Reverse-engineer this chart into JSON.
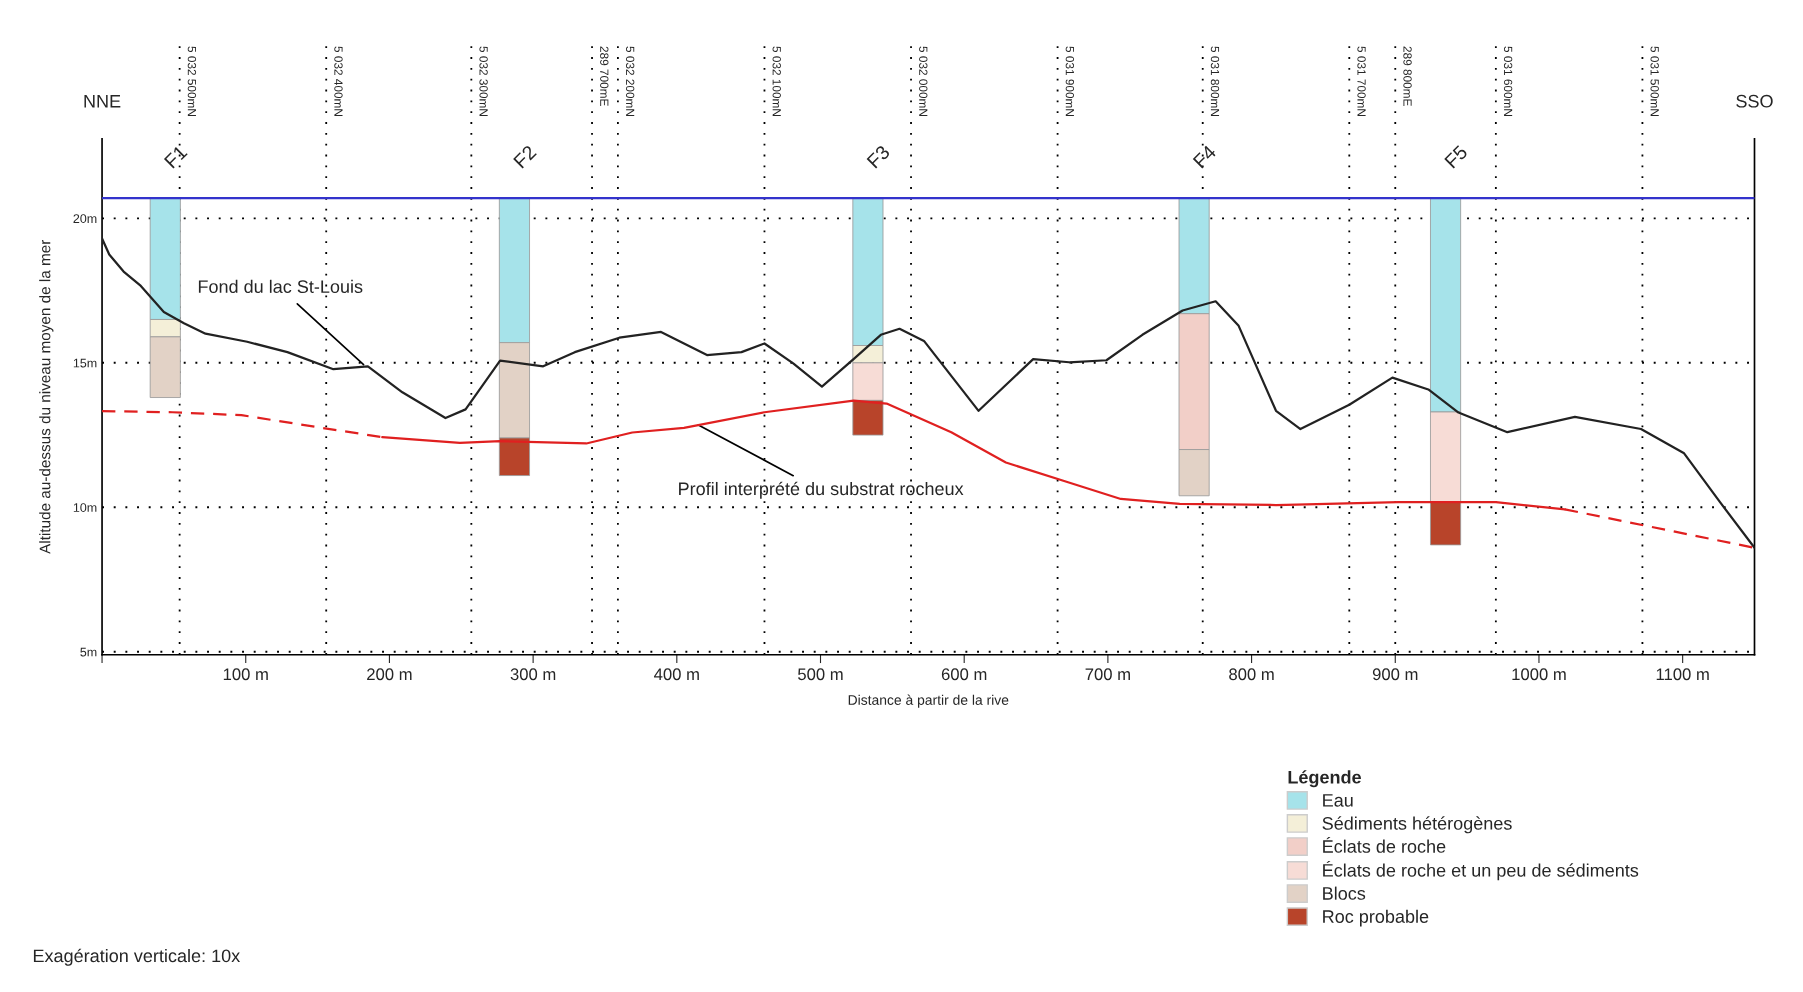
{
  "chart_data": {
    "type": "bar",
    "xlabel": "Distance à partir de la rive",
    "ylabel": "Altitude au-dessus du niveau moyen de la mer",
    "legend_title": "Légende",
    "x": [
      44,
      287,
      533,
      760,
      935
    ],
    "series": [
      {
        "name": "Eau",
        "color": "#a6e3ea",
        "base": [
          16.5,
          15.7,
          15.6,
          16.7,
          13.3
        ],
        "values": [
          4.2,
          5.0,
          5.1,
          4.0,
          7.4
        ]
      },
      {
        "name": "Sédiments hétérogènes",
        "color": "#f4efd8",
        "base": [
          15.9,
          null,
          15.0,
          null,
          null
        ],
        "values": [
          0.6,
          null,
          0.6,
          null,
          null
        ]
      },
      {
        "name": "Éclats de roche",
        "color": "#f2cfc8",
        "base": [
          null,
          null,
          null,
          12.0,
          null
        ],
        "values": [
          null,
          null,
          null,
          4.7,
          null
        ]
      },
      {
        "name": "Éclats de roche et un peu de sédiments",
        "color": "#f7dcd6",
        "base": [
          null,
          null,
          13.7,
          null,
          10.2
        ],
        "values": [
          null,
          null,
          1.3,
          null,
          3.1
        ]
      },
      {
        "name": "Blocs",
        "color": "#e2d2c6",
        "base": [
          13.8,
          12.4,
          null,
          10.4,
          null
        ],
        "values": [
          2.1,
          3.3,
          null,
          1.6,
          null
        ]
      },
      {
        "name": "Roc probable",
        "color": "#b8442a",
        "base": [
          null,
          11.1,
          12.5,
          null,
          8.7
        ],
        "values": [
          null,
          1.3,
          1.2,
          null,
          1.5
        ]
      },
      {
        "type": "line",
        "color": "#222222",
        "line_style": "solid",
        "x": [
          0,
          5,
          15,
          27,
          43,
          57,
          72,
          101,
          129,
          161,
          185,
          209,
          239,
          253,
          277,
          307,
          329,
          360,
          389,
          421,
          445,
          461,
          481,
          501,
          523,
          542,
          555,
          572,
          610,
          648,
          673,
          699,
          724,
          752,
          775,
          791,
          817,
          834,
          868,
          898,
          923,
          944,
          978,
          1025,
          1071,
          1101,
          1126,
          1150
        ],
        "values": [
          19.3,
          18.75,
          18.16,
          17.66,
          16.76,
          16.37,
          16.01,
          15.73,
          15.37,
          14.78,
          14.88,
          13.98,
          13.09,
          13.39,
          15.08,
          14.88,
          15.37,
          15.87,
          16.07,
          15.27,
          15.37,
          15.67,
          14.98,
          14.18,
          15.13,
          15.97,
          16.18,
          15.76,
          13.34,
          15.13,
          15.02,
          15.09,
          15.97,
          16.81,
          17.13,
          16.28,
          13.34,
          12.71,
          13.55,
          14.49,
          14.08,
          13.28,
          12.6,
          13.13,
          12.71,
          11.87,
          10.18,
          8.6
        ]
      },
      {
        "type": "line",
        "color": "#e02020",
        "line_style": "dashed",
        "x": [
          0,
          49,
          97,
          153,
          195
        ],
        "values": [
          13.33,
          13.29,
          13.19,
          12.75,
          12.43
        ]
      },
      {
        "type": "line",
        "color": "#e02020",
        "line_style": "solid",
        "x": [
          195,
          249,
          277,
          337,
          369,
          405,
          461,
          523,
          546,
          591,
          629,
          669,
          709,
          750,
          817,
          902,
          970,
          1018
        ],
        "values": [
          12.43,
          12.23,
          12.29,
          12.21,
          12.59,
          12.75,
          13.29,
          13.69,
          13.59,
          12.6,
          11.55,
          10.92,
          10.29,
          10.12,
          10.08,
          10.18,
          10.18,
          9.93
        ]
      },
      {
        "type": "line",
        "color": "#e02020",
        "line_style": "dashed",
        "x": [
          1018,
          1150
        ],
        "values": [
          9.93,
          8.6
        ]
      }
    ],
    "xlim": [
      0,
      1150
    ],
    "ylim": [
      4.9,
      22.75
    ],
    "xticks": [
      {
        "value": 0,
        "label": null
      },
      {
        "value": 100,
        "label": "100 m"
      },
      {
        "value": 200,
        "label": "200 m"
      },
      {
        "value": 300,
        "label": "300 m"
      },
      {
        "value": 400,
        "label": "400 m"
      },
      {
        "value": 500,
        "label": "500 m"
      },
      {
        "value": 600,
        "label": "600 m"
      },
      {
        "value": 700,
        "label": "700 m"
      },
      {
        "value": 800,
        "label": "800 m"
      },
      {
        "value": 900,
        "label": "900 m"
      },
      {
        "value": 1000,
        "label": "1000 m"
      },
      {
        "value": 1100,
        "label": "1100 m"
      }
    ],
    "yticks": [
      {
        "value": 5,
        "label": "5m"
      },
      {
        "value": 10,
        "label": "10m"
      },
      {
        "value": 15,
        "label": "15m"
      },
      {
        "value": 20,
        "label": "20m"
      }
    ],
    "grid": "y",
    "legend": "bottom right",
    "ref_lines": [
      {
        "axis": "y",
        "value": 20.7,
        "color": "#3333cc",
        "line_style": "solid"
      },
      {
        "axis": "x",
        "value": 54,
        "label": "5 032 500mN",
        "line_style": "dotted",
        "color": "#000000"
      },
      {
        "axis": "x",
        "value": 156,
        "label": "5 032 400mN",
        "line_style": "dotted",
        "color": "#000000"
      },
      {
        "axis": "x",
        "value": 257,
        "label": "5 032 300mN",
        "line_style": "dotted",
        "color": "#000000"
      },
      {
        "axis": "x",
        "value": 341,
        "label": "289 700mE",
        "line_style": "dotted",
        "color": "#000000"
      },
      {
        "axis": "x",
        "value": 359,
        "label": "5 032 200mN",
        "line_style": "dotted",
        "color": "#000000"
      },
      {
        "axis": "x",
        "value": 461,
        "label": "5 032 100mN",
        "line_style": "dotted",
        "color": "#000000"
      },
      {
        "axis": "x",
        "value": 563,
        "label": "5 032 000mN",
        "line_style": "dotted",
        "color": "#000000"
      },
      {
        "axis": "x",
        "value": 665,
        "label": "5 031 900mN",
        "line_style": "dotted",
        "color": "#000000"
      },
      {
        "axis": "x",
        "value": 766,
        "label": "5 031 800mN",
        "line_style": "dotted",
        "color": "#000000"
      },
      {
        "axis": "x",
        "value": 868,
        "label": "5 031 700mN",
        "line_style": "dotted",
        "color": "#000000"
      },
      {
        "axis": "x",
        "value": 900,
        "label": "289 800mE",
        "line_style": "dotted",
        "color": "#000000"
      },
      {
        "axis": "x",
        "value": 970,
        "label": "5 031 600mN",
        "line_style": "dotted",
        "color": "#000000"
      },
      {
        "axis": "x",
        "value": 1072,
        "label": "5 031 500mN",
        "line_style": "dotted",
        "color": "#000000"
      }
    ],
    "annotations": [
      "F1",
      "F2",
      "F3",
      "F4",
      "F5",
      {
        "text": "Fond du lac St-Louis",
        "x": 182,
        "y": 14.94
      },
      {
        "text": "Profil interprété du substrat rocheux",
        "x": 415,
        "y": 12.85
      },
      "NNE",
      "SSO",
      "Exagération verticale: 10x"
    ]
  }
}
